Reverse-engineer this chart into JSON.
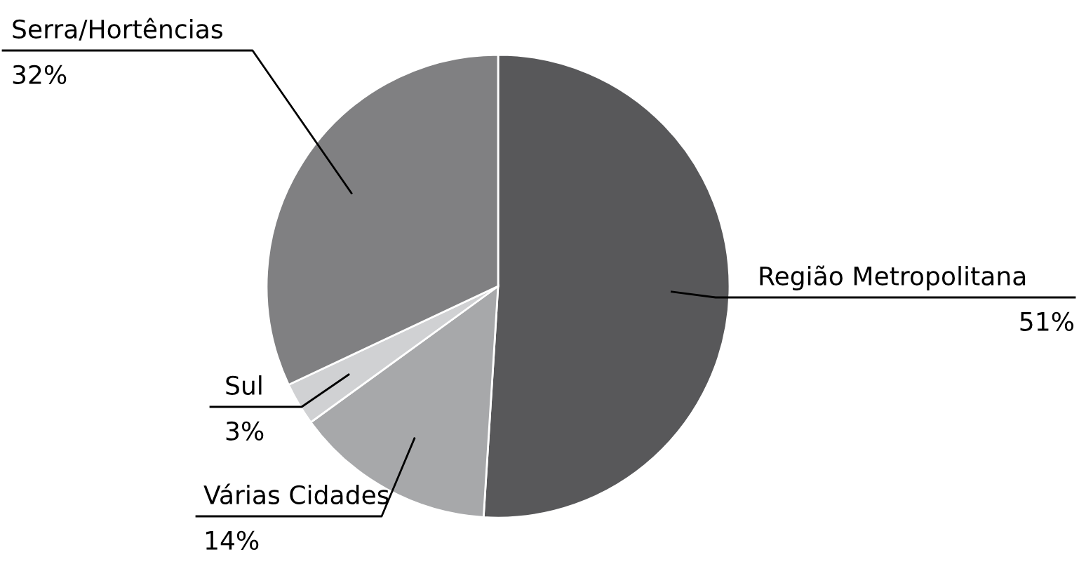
{
  "chart_data": {
    "type": "pie",
    "categories": [
      "Região Metropolitana",
      "Várias Cidades",
      "Sul",
      "Serra/Hortências"
    ],
    "values": [
      51,
      14,
      3,
      32
    ],
    "value_labels": [
      "51%",
      "14%",
      "3%",
      "32%"
    ],
    "colors": [
      "#58585a",
      "#a7a8aa",
      "#d0d1d3",
      "#808082"
    ]
  }
}
